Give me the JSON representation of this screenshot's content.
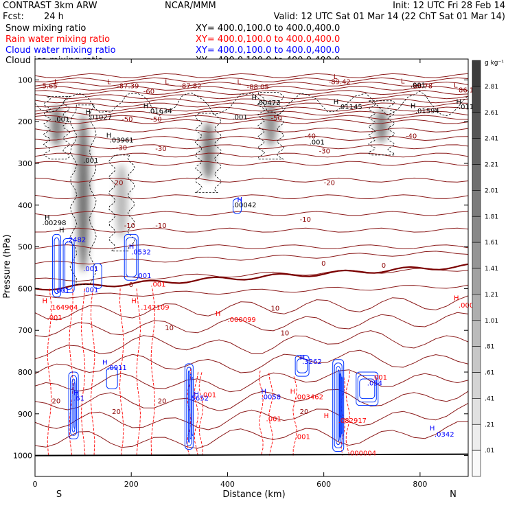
{
  "header": {
    "model": "CONTRAST   3km ARW",
    "center": "NCAR/MMM",
    "init": "Init: 12 UTC Fri 28 Feb 14",
    "fcst_label": "Fcst:",
    "fcst_value": "24 h",
    "valid": "Valid: 12 UTC Sat 01 Mar 14 (22 ChT Sat 01 Mar 14)"
  },
  "legend": [
    {
      "name": "Snow mixing ratio",
      "xy": "XY= 400.0,100.0 to 400.0,400.0",
      "color": "#000000"
    },
    {
      "name": "Rain water mixing ratio",
      "xy": "XY= 400.0,100.0 to 400.0,400.0",
      "color": "#ff0000"
    },
    {
      "name": "Cloud water mixing ratio",
      "xy": "XY= 400.0,100.0 to 400.0,400.0",
      "color": "#0000ff"
    },
    {
      "name": "Cloud ice mixing ratio",
      "xy": "XY= 400.0,100.0 to 400.0,400.0",
      "color": "#000000"
    }
  ],
  "colorbar": {
    "unit": "g kg⁻¹",
    "levels": [
      "2.81",
      "2.61",
      "2.41",
      "2.21",
      "2.01",
      "1.81",
      "1.61",
      "1.41",
      "1.21",
      "1.01",
      ".81",
      ".61",
      ".41",
      ".21",
      ".01"
    ]
  },
  "chart_data": {
    "type": "heatmap",
    "title": "",
    "xlabel": "Distance (km)",
    "ylabel": "Pressure (hPa)",
    "xlim": [
      0,
      900
    ],
    "ylim": [
      1050,
      50
    ],
    "x_ticks": [
      "0",
      "200",
      "400",
      "600",
      "800"
    ],
    "x_tick_values": [
      0,
      200,
      400,
      600,
      800
    ],
    "y_ticks": [
      "100",
      "200",
      "300",
      "400",
      "500",
      "600",
      "700",
      "800",
      "900",
      "1000"
    ],
    "y_tick_values": [
      100,
      200,
      300,
      400,
      500,
      600,
      700,
      800,
      900,
      1000
    ],
    "orientation_left": "S",
    "orientation_right": "N",
    "temperature_contours": [
      {
        "label": "-50",
        "p": 200
      },
      {
        "label": "-40",
        "p": 260
      },
      {
        "label": "-30",
        "p": 305
      },
      {
        "label": "-20",
        "p": 360
      },
      {
        "label": "-10",
        "p": 450
      },
      {
        "label": "0",
        "p": 545
      },
      {
        "label": "10",
        "p": 680
      },
      {
        "label": "20",
        "p": 860
      }
    ],
    "shaded_snow_columns": [
      {
        "x": 45,
        "p_top": 160,
        "p_bot": 260,
        "v": 2.3
      },
      {
        "x": 100,
        "p_top": 180,
        "p_bot": 560,
        "v": 2.6
      },
      {
        "x": 180,
        "p_top": 300,
        "p_bot": 480,
        "v": 1.2
      },
      {
        "x": 360,
        "p_top": 200,
        "p_bot": 340,
        "v": 2.4
      },
      {
        "x": 490,
        "p_top": 150,
        "p_bot": 260,
        "v": 2.0
      },
      {
        "x": 720,
        "p_top": 170,
        "p_bot": 250,
        "v": 2.2
      }
    ],
    "annotations": [
      {
        "text": "L",
        "x": 40,
        "p": 110,
        "color": "#8b0000"
      },
      {
        "text": "5.65",
        "x": 15,
        "p": 120,
        "color": "#8b0000"
      },
      {
        "text": "L",
        "x": 150,
        "p": 110,
        "color": "#8b0000"
      },
      {
        "text": "-87.39",
        "x": 170,
        "p": 120,
        "color": "#8b0000"
      },
      {
        "text": "L",
        "x": 270,
        "p": 110,
        "color": "#8b0000"
      },
      {
        "text": "-87.82",
        "x": 300,
        "p": 120,
        "color": "#8b0000"
      },
      {
        "text": "L",
        "x": 420,
        "p": 110,
        "color": "#8b0000"
      },
      {
        "text": "-88.05",
        "x": 440,
        "p": 122,
        "color": "#8b0000"
      },
      {
        "text": "L",
        "x": 620,
        "p": 98,
        "color": "#8b0000"
      },
      {
        "text": "-89.42",
        "x": 610,
        "p": 110,
        "color": "#8b0000"
      },
      {
        "text": "L",
        "x": 760,
        "p": 108,
        "color": "#8b0000"
      },
      {
        "text": "-86.78",
        "x": 780,
        "p": 120,
        "color": "#8b0000"
      },
      {
        "text": "L",
        "x": 870,
        "p": 118,
        "color": "#8b0000"
      },
      {
        "text": "86.19",
        "x": 880,
        "p": 130,
        "color": "#8b0000"
      },
      {
        "text": ".001",
        "x": 780,
        "p": 118,
        "color": "#000000"
      },
      {
        "text": "-60",
        "x": 225,
        "p": 133,
        "color": "#8b0000"
      },
      {
        "text": ".001",
        "x": 40,
        "p": 200,
        "color": "#000000"
      },
      {
        "text": "H",
        "x": 105,
        "p": 182,
        "color": "#000000"
      },
      {
        "text": ".01027",
        "x": 110,
        "p": 195,
        "color": "#000000"
      },
      {
        "text": "H",
        "x": 225,
        "p": 168,
        "color": "#000000"
      },
      {
        "text": ".01634",
        "x": 235,
        "p": 180,
        "color": "#000000"
      },
      {
        "text": "H",
        "x": 450,
        "p": 148,
        "color": "#000000"
      },
      {
        "text": ".00473",
        "x": 460,
        "p": 160,
        "color": "#000000"
      },
      {
        "text": "H",
        "x": 620,
        "p": 158,
        "color": "#000000"
      },
      {
        "text": ".01145",
        "x": 630,
        "p": 170,
        "color": "#000000"
      },
      {
        "text": "H",
        "x": 780,
        "p": 168,
        "color": "#000000"
      },
      {
        "text": ".01594",
        "x": 790,
        "p": 180,
        "color": "#000000"
      },
      {
        "text": "H",
        "x": 875,
        "p": 158,
        "color": "#000000"
      },
      {
        "text": ".011",
        "x": 880,
        "p": 170,
        "color": "#000000"
      },
      {
        "text": "-50",
        "x": 180,
        "p": 200,
        "color": "#8b0000"
      },
      {
        "text": "-50",
        "x": 240,
        "p": 200,
        "color": "#8b0000"
      },
      {
        "text": "-50",
        "x": 490,
        "p": 197,
        "color": "#8b0000"
      },
      {
        "text": ".001",
        "x": 410,
        "p": 195,
        "color": "#000000"
      },
      {
        "text": "H",
        "x": 148,
        "p": 238,
        "color": "#000000"
      },
      {
        "text": ".03961",
        "x": 155,
        "p": 250,
        "color": "#000000"
      },
      {
        "text": "-40",
        "x": 560,
        "p": 240,
        "color": "#8b0000"
      },
      {
        "text": ".001",
        "x": 570,
        "p": 255,
        "color": "#000000"
      },
      {
        "text": "-40",
        "x": 770,
        "p": 240,
        "color": "#8b0000"
      },
      {
        "text": "-30",
        "x": 168,
        "p": 268,
        "color": "#8b0000"
      },
      {
        "text": "-30",
        "x": 250,
        "p": 270,
        "color": "#8b0000"
      },
      {
        "text": "-30",
        "x": 590,
        "p": 276,
        "color": "#8b0000"
      },
      {
        "text": ".001",
        "x": 100,
        "p": 298,
        "color": "#000000"
      },
      {
        "text": "-20",
        "x": 160,
        "p": 352,
        "color": "#8b0000"
      },
      {
        "text": "-20",
        "x": 600,
        "p": 352,
        "color": "#8b0000"
      },
      {
        "text": "H",
        "x": 420,
        "p": 392,
        "color": "#0000ff"
      },
      {
        "text": ".00042",
        "x": 410,
        "p": 405,
        "color": "#000000"
      },
      {
        "text": "H",
        "x": 20,
        "p": 435,
        "color": "#000000"
      },
      {
        "text": ".00298",
        "x": 15,
        "p": 448,
        "color": "#000000"
      },
      {
        "text": "-10",
        "x": 185,
        "p": 455,
        "color": "#8b0000"
      },
      {
        "text": "-10",
        "x": 250,
        "p": 455,
        "color": "#8b0000"
      },
      {
        "text": "-10",
        "x": 550,
        "p": 440,
        "color": "#8b0000"
      },
      {
        "text": "H",
        "x": 50,
        "p": 465,
        "color": "#000000"
      },
      {
        "text": ".2482",
        "x": 65,
        "p": 488,
        "color": "#0000ff"
      },
      {
        "text": "H",
        "x": 195,
        "p": 505,
        "color": "#0000ff"
      },
      {
        "text": ".0532",
        "x": 200,
        "p": 518,
        "color": "#0000ff"
      },
      {
        "text": "0",
        "x": 595,
        "p": 545,
        "color": "#8b0000"
      },
      {
        "text": "0",
        "x": 720,
        "p": 550,
        "color": "#8b0000"
      },
      {
        "text": ".001",
        "x": 100,
        "p": 558,
        "color": "#0000ff"
      },
      {
        "text": ".001",
        "x": 210,
        "p": 575,
        "color": "#0000ff"
      },
      {
        "text": ".001",
        "x": 40,
        "p": 610,
        "color": "#0000ff"
      },
      {
        "text": ".001",
        "x": 100,
        "p": 608,
        "color": "#0000ff"
      },
      {
        "text": "0",
        "x": 195,
        "p": 596,
        "color": "#8b0000"
      },
      {
        "text": ".001",
        "x": 240,
        "p": 595,
        "color": "#ff0000"
      },
      {
        "text": "H",
        "x": 15,
        "p": 635,
        "color": "#ff0000"
      },
      {
        "text": ".164964",
        "x": 30,
        "p": 650,
        "color": "#ff0000"
      },
      {
        "text": "H",
        "x": 200,
        "p": 635,
        "color": "#ff0000"
      },
      {
        "text": ".142109",
        "x": 220,
        "p": 650,
        "color": "#ff0000"
      },
      {
        "text": "H",
        "x": 870,
        "p": 628,
        "color": "#ff0000"
      },
      {
        "text": ".000",
        "x": 880,
        "p": 645,
        "color": "#ff0000"
      },
      {
        "text": "10",
        "x": 490,
        "p": 653,
        "color": "#8b0000"
      },
      {
        "text": "H",
        "x": 375,
        "p": 665,
        "color": "#ff0000"
      },
      {
        "text": ".000099",
        "x": 400,
        "p": 680,
        "color": "#ff0000"
      },
      {
        "text": ".001",
        "x": 25,
        "p": 675,
        "color": "#ff0000"
      },
      {
        "text": "10",
        "x": 270,
        "p": 700,
        "color": "#8b0000"
      },
      {
        "text": "10",
        "x": 510,
        "p": 712,
        "color": "#8b0000"
      },
      {
        "text": "H",
        "x": 140,
        "p": 782,
        "color": "#0000ff"
      },
      {
        "text": ".0911",
        "x": 150,
        "p": 795,
        "color": "#0000ff"
      },
      {
        "text": "H",
        "x": 550,
        "p": 770,
        "color": "#0000ff"
      },
      {
        "text": ".3262",
        "x": 555,
        "p": 780,
        "color": "#0000ff"
      },
      {
        "text": ".001",
        "x": 700,
        "p": 818,
        "color": "#ff0000"
      },
      {
        "text": ".054",
        "x": 690,
        "p": 832,
        "color": "#0000ff"
      },
      {
        "text": "H",
        "x": 80,
        "p": 855,
        "color": "#0000ff"
      },
      {
        "text": ".61",
        "x": 80,
        "p": 868,
        "color": "#0000ff"
      },
      {
        "text": "H",
        "x": 330,
        "p": 858,
        "color": "#0000ff"
      },
      {
        "text": ".5652",
        "x": 320,
        "p": 868,
        "color": "#0000ff"
      },
      {
        "text": ".001",
        "x": 345,
        "p": 860,
        "color": "#ff0000"
      },
      {
        "text": "H",
        "x": 470,
        "p": 852,
        "color": "#0000ff"
      },
      {
        "text": ".0058",
        "x": 470,
        "p": 865,
        "color": "#0000ff"
      },
      {
        "text": "H",
        "x": 530,
        "p": 852,
        "color": "#ff0000"
      },
      {
        "text": ".003462",
        "x": 540,
        "p": 865,
        "color": "#ff0000"
      },
      {
        "text": "20",
        "x": 35,
        "p": 875,
        "color": "#8b0000"
      },
      {
        "text": "20",
        "x": 255,
        "p": 875,
        "color": "#8b0000"
      },
      {
        "text": "20",
        "x": 160,
        "p": 900,
        "color": "#8b0000"
      },
      {
        "text": "20",
        "x": 550,
        "p": 900,
        "color": "#8b0000"
      },
      {
        "text": ".001",
        "x": 480,
        "p": 918,
        "color": "#ff0000"
      },
      {
        "text": "H",
        "x": 600,
        "p": 910,
        "color": "#ff0000"
      },
      {
        "text": ".082917",
        "x": 630,
        "p": 922,
        "color": "#ff0000"
      },
      {
        "text": "H",
        "x": 820,
        "p": 940,
        "color": "#0000ff"
      },
      {
        "text": ".0342",
        "x": 830,
        "p": 955,
        "color": "#0000ff"
      },
      {
        "text": ".001",
        "x": 540,
        "p": 960,
        "color": "#ff0000"
      },
      {
        "text": ".000004",
        "x": 650,
        "p": 1000,
        "color": "#ff0000"
      }
    ]
  }
}
